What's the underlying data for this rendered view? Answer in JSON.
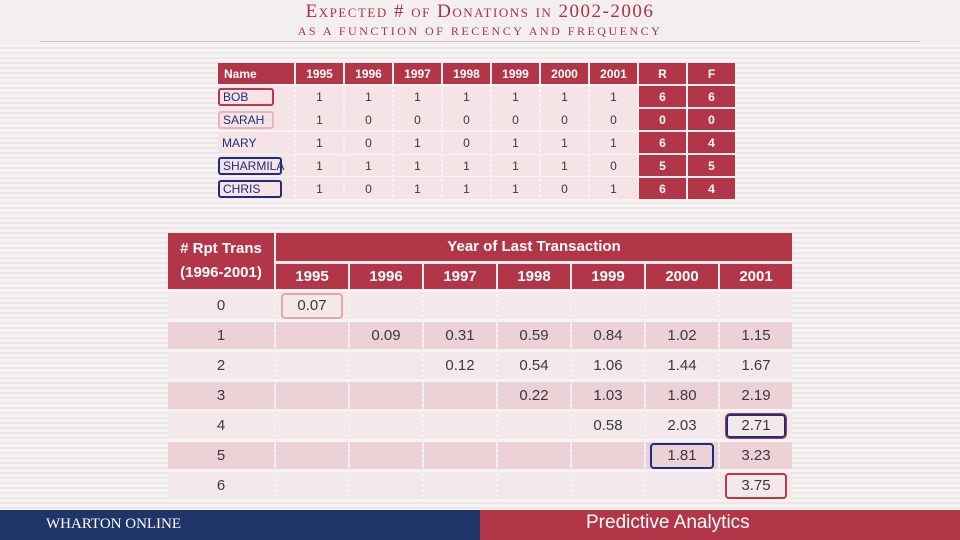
{
  "title": {
    "main": "Expected # of Donations in 2002-2006",
    "sub": "AS A FUNCTION OF RECENCY AND FREQUENCY"
  },
  "top_table": {
    "headers": [
      "Name",
      "1995",
      "1996",
      "1997",
      "1998",
      "1999",
      "2000",
      "2001",
      "R",
      "F"
    ],
    "rows": [
      {
        "name": "BOB",
        "values": [
          "1",
          "1",
          "1",
          "1",
          "1",
          "1",
          "1"
        ],
        "r": "6",
        "f": "6"
      },
      {
        "name": "SARAH",
        "values": [
          "1",
          "0",
          "0",
          "0",
          "0",
          "0",
          "0"
        ],
        "r": "0",
        "f": "0"
      },
      {
        "name": "MARY",
        "values": [
          "1",
          "0",
          "1",
          "0",
          "1",
          "1",
          "1"
        ],
        "r": "6",
        "f": "4"
      },
      {
        "name": "SHARMILA",
        "values": [
          "1",
          "1",
          "1",
          "1",
          "1",
          "1",
          "0"
        ],
        "r": "5",
        "f": "5"
      },
      {
        "name": "CHRIS",
        "values": [
          "1",
          "0",
          "1",
          "1",
          "1",
          "0",
          "1"
        ],
        "r": "6",
        "f": "4"
      }
    ]
  },
  "main_table": {
    "corner_line1": "# Rpt Trans",
    "corner_line2": "(1996-2001)",
    "col_group": "Year of Last Transaction",
    "columns": [
      "1995",
      "1996",
      "1997",
      "1998",
      "1999",
      "2000",
      "2001"
    ],
    "rows": [
      {
        "label": "0",
        "cells": [
          "0.07",
          "",
          "",
          "",
          "",
          "",
          ""
        ]
      },
      {
        "label": "1",
        "cells": [
          "",
          "0.09",
          "0.31",
          "0.59",
          "0.84",
          "1.02",
          "1.15"
        ]
      },
      {
        "label": "2",
        "cells": [
          "",
          "",
          "0.12",
          "0.54",
          "1.06",
          "1.44",
          "1.67"
        ]
      },
      {
        "label": "3",
        "cells": [
          "",
          "",
          "",
          "0.22",
          "1.03",
          "1.80",
          "2.19"
        ]
      },
      {
        "label": "4",
        "cells": [
          "",
          "",
          "",
          "",
          "0.58",
          "2.03",
          "2.71"
        ]
      },
      {
        "label": "5",
        "cells": [
          "",
          "",
          "",
          "",
          "",
          "1.81",
          "3.23"
        ]
      },
      {
        "label": "6",
        "cells": [
          "",
          "",
          "",
          "",
          "",
          "",
          "3.75"
        ]
      }
    ]
  },
  "footer": {
    "brand": "WHARTON ONLINE",
    "course": "Predictive Analytics"
  },
  "colors": {
    "accent_red": "#b33548",
    "navy": "#1f3568"
  }
}
